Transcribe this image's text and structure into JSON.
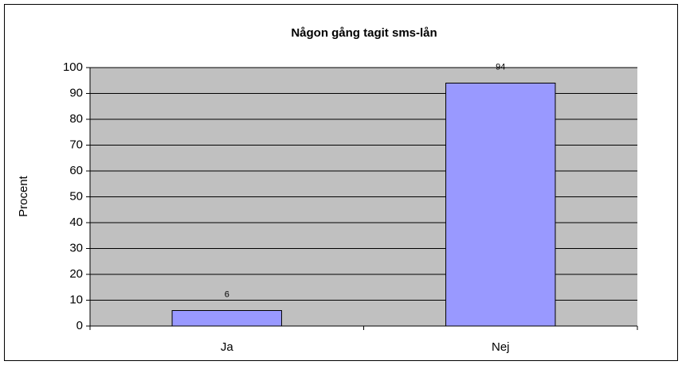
{
  "chart_data": {
    "type": "bar",
    "title": "Någon gång tagit sms-lån",
    "y_label": "Procent",
    "categories": [
      "Ja",
      "Nej"
    ],
    "values": [
      6,
      94
    ],
    "color": "#9999ff",
    "ylim": [
      0,
      100
    ],
    "yticks": [
      0,
      10,
      20,
      30,
      40,
      50,
      60,
      70,
      80,
      90,
      100
    ],
    "grid": true
  }
}
